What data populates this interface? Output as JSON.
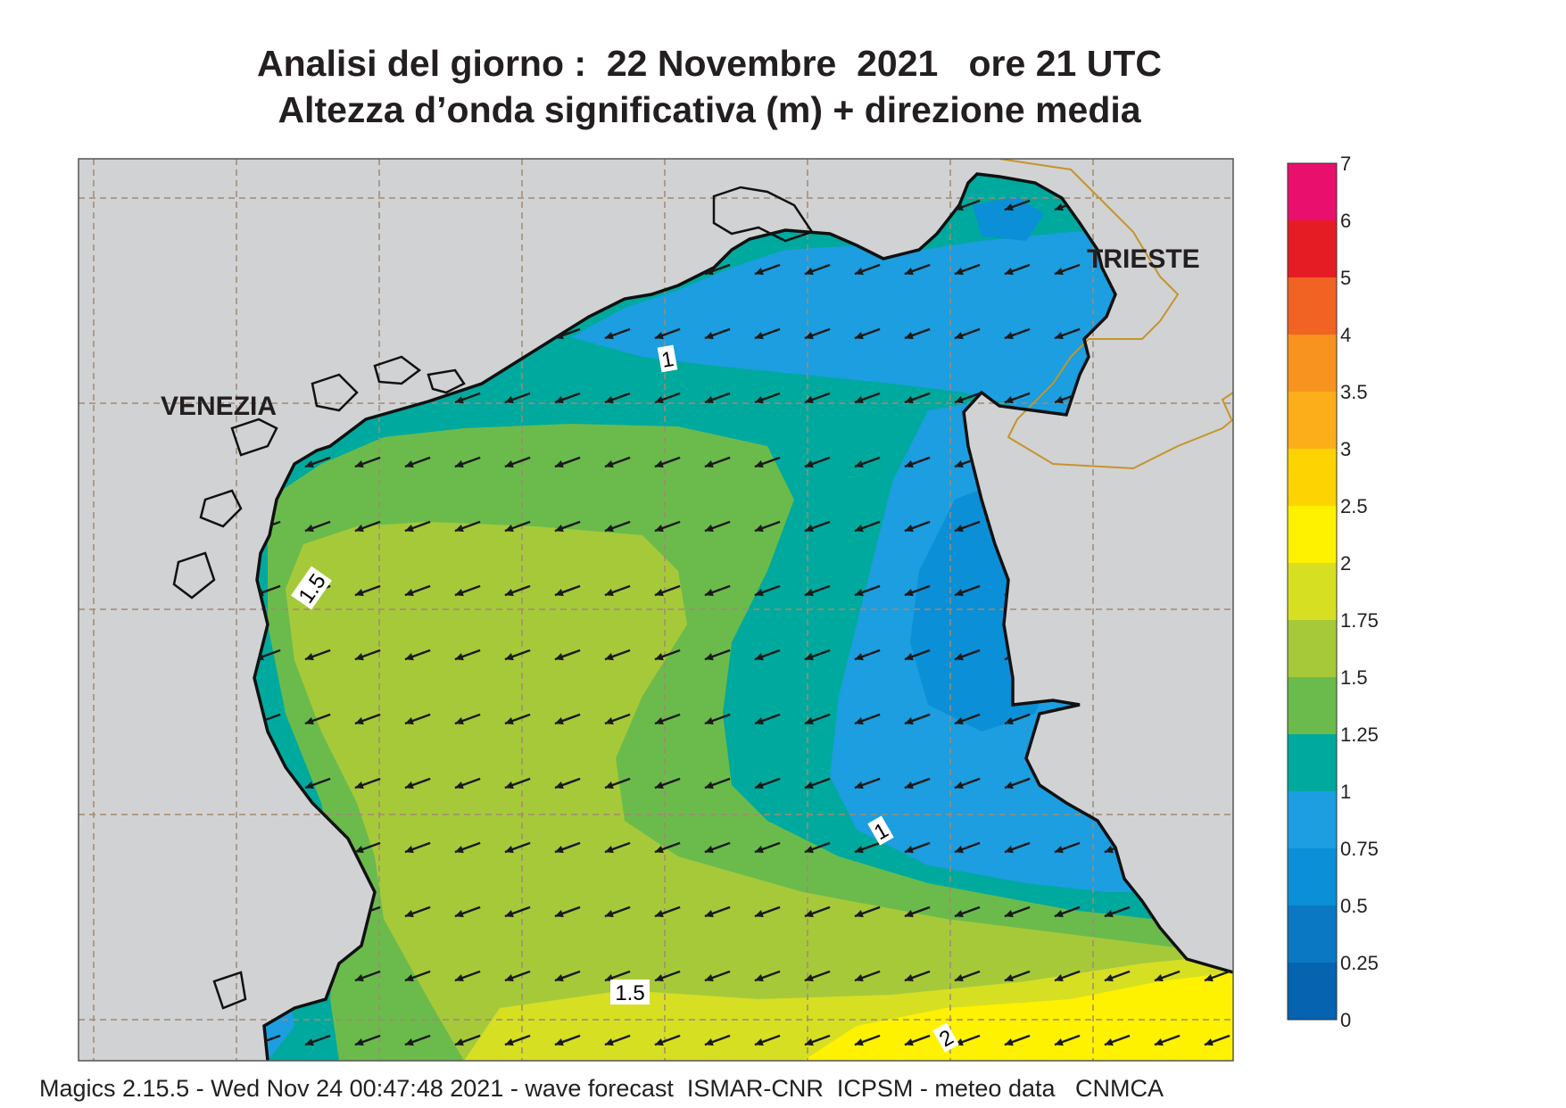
{
  "header": {
    "title_line1": "Analisi del giorno :  22 Novembre  2021   ore 21 UTC",
    "title_line2": "Altezza d’onda significativa (m) + direzione media"
  },
  "map": {
    "cities": [
      "VENEZIA",
      "TRIESTE"
    ],
    "contour_labels": [
      "1",
      "1.5",
      "1",
      "1.5",
      "2"
    ],
    "land_color": "#d1d2d4",
    "graticule_color": "#a08a72",
    "arrow_direction": "from east-northeast (pointing west-southwest)"
  },
  "colorbar": {
    "levels": [
      "7",
      "6",
      "5",
      "4",
      "3.5",
      "3",
      "2.5",
      "2",
      "1.75",
      "1.5",
      "1.25",
      "1",
      "0.75",
      "0.5",
      "0.25",
      "0"
    ],
    "colors": [
      "#e8106c",
      "#e61c24",
      "#f06322",
      "#f7931e",
      "#fbae1a",
      "#fdd402",
      "#fff200",
      "#d7df23",
      "#a6c93a",
      "#6bbb4c",
      "#00a99d",
      "#1c9ee0",
      "#0b8fd6",
      "#0a78c2",
      "#0563b0"
    ]
  },
  "footer": {
    "text": "Magics 2.15.5 - Wed Nov 24 00:47:48 2021 - wave forecast  ISMAR-CNR  ICPSM - meteo data   CNMCA"
  }
}
